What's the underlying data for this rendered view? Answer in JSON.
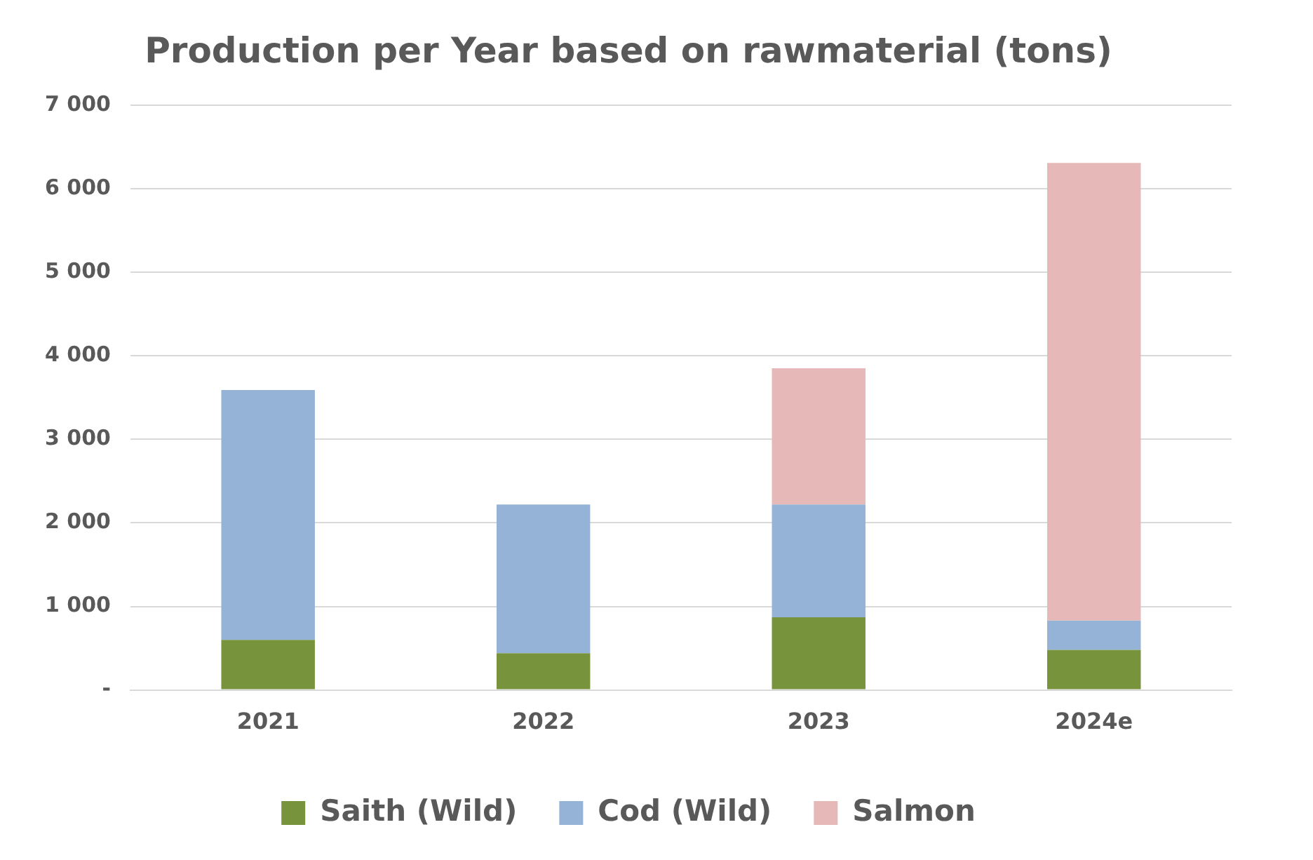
{
  "chart_data": {
    "type": "bar",
    "title": "Production per Year based on rawmaterial (tons)",
    "categories": [
      "2021",
      "2022",
      "2023",
      "2024e"
    ],
    "stacked": true,
    "series": [
      {
        "name": "Saith (Wild)",
        "color": "#77933c",
        "values": [
          600,
          440,
          870,
          480
        ]
      },
      {
        "name": "Cod (Wild)",
        "color": "#95b3d7",
        "values": [
          2990,
          1780,
          1350,
          350
        ]
      },
      {
        "name": "Salmon",
        "color": "#e6b9b8",
        "values": [
          0,
          0,
          1630,
          5480
        ]
      }
    ],
    "ylim": [
      0,
      7000
    ],
    "yticks": [
      {
        "value": 0,
        "label": "-"
      },
      {
        "value": 1000,
        "label": "1 000"
      },
      {
        "value": 2000,
        "label": "2 000"
      },
      {
        "value": 3000,
        "label": "3 000"
      },
      {
        "value": 4000,
        "label": "4 000"
      },
      {
        "value": 5000,
        "label": "5 000"
      },
      {
        "value": 6000,
        "label": "6 000"
      },
      {
        "value": 7000,
        "label": "7 000"
      }
    ],
    "grid": "y",
    "legend": "bottom"
  }
}
